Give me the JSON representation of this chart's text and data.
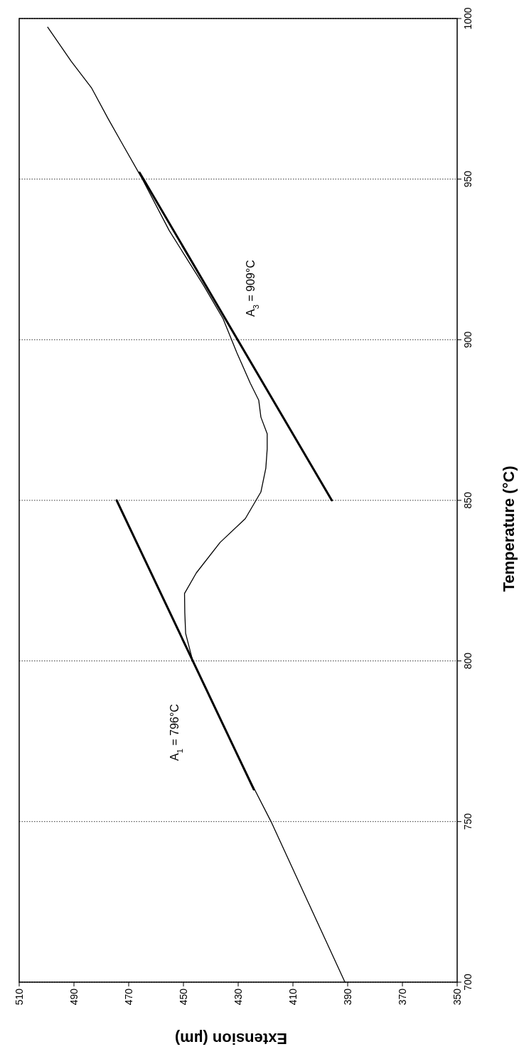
{
  "chart_data": {
    "type": "line",
    "xlabel": "Extension (µm)",
    "ylabel": "Temperature (°C)",
    "xlim": [
      510,
      350
    ],
    "xticks": [
      510,
      490,
      470,
      450,
      430,
      410,
      390,
      370,
      350
    ],
    "ylim": [
      700,
      1000
    ],
    "yticks": [
      700,
      750,
      800,
      850,
      900,
      950,
      1000
    ],
    "grid": "y",
    "marker": "none",
    "line_style": "solid",
    "series": [
      {
        "color": "#000000",
        "x": [
          391,
          404.5,
          418,
          424.3,
          435.5,
          446.6,
          449.2,
          449.5,
          449.6,
          445.3,
          436.6,
          427.4,
          421.7,
          419.9,
          419.4,
          419.4,
          421.7,
          422.5,
          425.6,
          430.5,
          435.5,
          442.7,
          455.2,
          465,
          472.6,
          477.5,
          483.5,
          491,
          499.6
        ],
        "values": [
          700,
          725,
          750,
          760.5,
          780,
          800,
          808.6,
          815,
          821,
          827.4,
          836.9,
          844.3,
          852.6,
          860,
          866,
          870.7,
          875.9,
          881.2,
          886.5,
          896,
          906.5,
          917,
          934,
          950,
          961.4,
          968.8,
          978.3,
          986.7,
          997.3
        ]
      },
      {
        "color": "#000000",
        "x": [
          424.3,
          474.4
        ],
        "values": [
          760,
          850
        ]
      },
      {
        "color": "#000000",
        "x": [
          395.8,
          466
        ],
        "values": [
          850,
          952
        ]
      }
    ],
    "annotations": [
      "A$_{1}$ = 796°C",
      "A$_{3}$ = 909°C"
    ]
  }
}
